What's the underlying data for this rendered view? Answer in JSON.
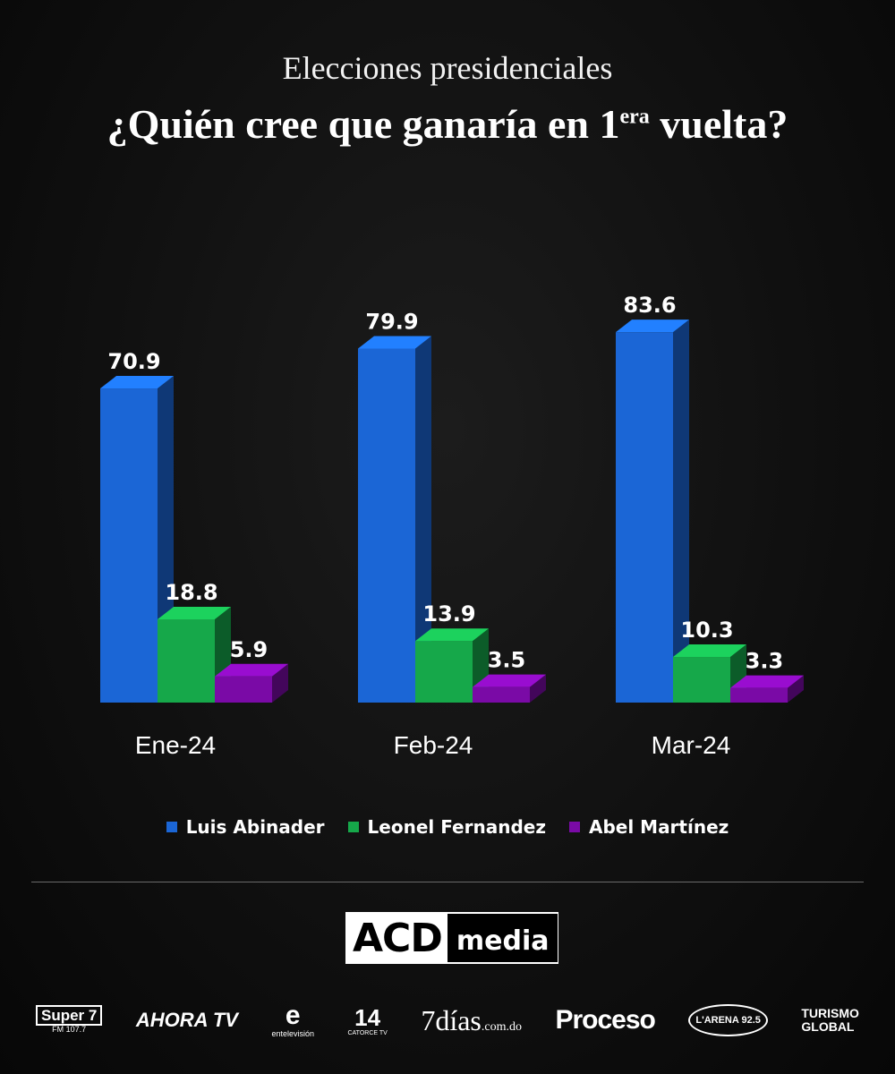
{
  "header": {
    "subtitle": "Elecciones presidenciales",
    "title_main": "¿Quién cree que ganaría en 1",
    "title_sup": "era",
    "title_end": " vuelta?"
  },
  "chart_data": {
    "type": "bar",
    "categories": [
      "Ene-24",
      "Feb-24",
      "Mar-24"
    ],
    "series": [
      {
        "name": "Luis Abinader",
        "values": [
          70.9,
          79.9,
          83.6
        ],
        "color": "#1b66d6"
      },
      {
        "name": "Leonel Fernandez",
        "values": [
          18.8,
          13.9,
          10.3
        ],
        "color": "#16a84a"
      },
      {
        "name": "Abel Martínez",
        "values": [
          5.9,
          3.5,
          3.3
        ],
        "color": "#7a0aa6"
      }
    ],
    "value_labels": [
      "70.9",
      "18.8",
      "5.9",
      "79.9",
      "13.9",
      "3.5",
      "83.6",
      "10.3",
      "3.3"
    ],
    "legend_position": "bottom",
    "grid": false,
    "style": "3d-columns"
  },
  "logo": {
    "left": "ACD",
    "right": "media"
  },
  "sponsors": [
    {
      "name": "Super 7",
      "sub": "FM 107.7"
    },
    {
      "name": "AHORA TV",
      "sub": ""
    },
    {
      "name": "e",
      "sub": "entelevisión"
    },
    {
      "name": "14",
      "sub": "CATORCE TV"
    },
    {
      "name": "7días",
      "sub": ".com.do"
    },
    {
      "name": "Proceso",
      "sub": ""
    },
    {
      "name": "L'ARENA 92.5",
      "sub": ""
    },
    {
      "name": "TURISMO",
      "sub": "GLOBAL"
    }
  ]
}
